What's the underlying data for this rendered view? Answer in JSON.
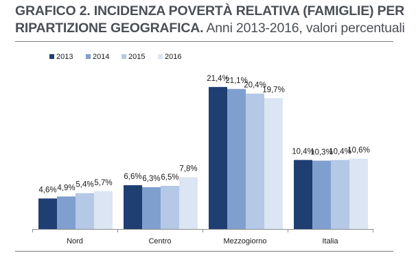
{
  "title": {
    "line1": "GRAFICO 2. INCIDENZA POVERTÀ RELATIVA (FAMIGLIE) PER",
    "line2_bold": "RIPARTIZIONE GEOGRAFICA.",
    "line2_normal": " Anni 2013-2016, valori percentuali"
  },
  "colors": {
    "2013": "#1f3f73",
    "2014": "#7f9fcf",
    "2015": "#b5c8e6",
    "2016": "#dbe5f3",
    "title_text": "#4a4f55",
    "rule": "#7a7a7a"
  },
  "chart_data": {
    "type": "bar",
    "title": "GRAFICO 2. INCIDENZA POVERTÀ RELATIVA (FAMIGLIE) PER RIPARTIZIONE GEOGRAFICA. Anni 2013-2016, valori percentuali",
    "categories": [
      "Nord",
      "Centro",
      "Mezzogiorno",
      "Italia"
    ],
    "series": [
      {
        "name": "2013",
        "values": [
          4.6,
          6.6,
          21.4,
          10.4
        ],
        "labels": [
          "4,6%",
          "6,6%",
          "21,4%",
          "10,4%"
        ]
      },
      {
        "name": "2014",
        "values": [
          4.9,
          6.3,
          21.1,
          10.3
        ],
        "labels": [
          "4,9%",
          "6,3%",
          "21,1%",
          "10,3%"
        ]
      },
      {
        "name": "2015",
        "values": [
          5.4,
          6.5,
          20.4,
          10.4
        ],
        "labels": [
          "5,4%",
          "6,5%",
          "20,4%",
          "10,4%"
        ]
      },
      {
        "name": "2016",
        "values": [
          5.7,
          7.8,
          19.7,
          10.6
        ],
        "labels": [
          "5,7%",
          "7,8%",
          "19,7%",
          "10,6%"
        ]
      }
    ],
    "xlabel": "",
    "ylabel": "",
    "ylim": [
      0,
      23
    ],
    "grid": false,
    "legend": "top-left"
  }
}
